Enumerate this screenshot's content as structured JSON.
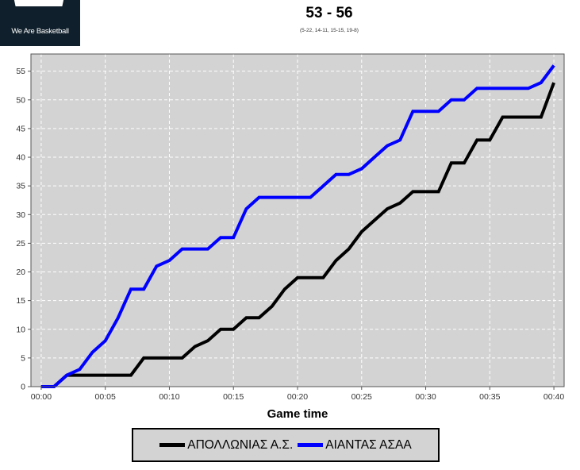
{
  "logo": {
    "tagline": "We Are Basketball"
  },
  "header": {
    "score": "53 - 56",
    "partials": "(5-22, 14-11, 15-15, 19-8)"
  },
  "colors": {
    "team1": "#000000",
    "team2": "#0000ff",
    "plot_background": "#d3d3d3",
    "grid": "#ffffff"
  },
  "chart_data": {
    "type": "line",
    "title": "53 - 56",
    "subtitle": "(5-22, 14-11, 15-15, 19-8)",
    "xlabel": "Game time",
    "ylabel": "",
    "x_unit": "minutes",
    "xlim": [
      -0.8,
      40.8
    ],
    "ylim": [
      0,
      58
    ],
    "x_ticks": [
      0,
      5,
      10,
      15,
      20,
      25,
      30,
      35,
      40
    ],
    "x_tick_labels": [
      "00:00",
      "00:05",
      "00:10",
      "00:15",
      "00:20",
      "00:25",
      "00:30",
      "00:35",
      "00:40"
    ],
    "y_ticks": [
      0,
      5,
      10,
      15,
      20,
      25,
      30,
      35,
      40,
      45,
      50,
      55
    ],
    "grid": true,
    "legend_position": "bottom",
    "series": [
      {
        "name": "ΑΠΟΛΛΩΝΙΑΣ Α.Σ.",
        "color": "#000000",
        "points": [
          [
            0,
            0
          ],
          [
            1,
            0
          ],
          [
            2,
            2
          ],
          [
            3,
            2
          ],
          [
            4,
            2
          ],
          [
            5,
            2
          ],
          [
            6,
            2
          ],
          [
            7,
            2
          ],
          [
            8,
            5
          ],
          [
            9,
            5
          ],
          [
            10,
            5
          ],
          [
            11,
            5
          ],
          [
            12,
            7
          ],
          [
            13,
            8
          ],
          [
            14,
            10
          ],
          [
            15,
            10
          ],
          [
            16,
            12
          ],
          [
            17,
            12
          ],
          [
            18,
            14
          ],
          [
            19,
            17
          ],
          [
            20,
            19
          ],
          [
            21,
            19
          ],
          [
            22,
            19
          ],
          [
            23,
            22
          ],
          [
            24,
            24
          ],
          [
            25,
            27
          ],
          [
            26,
            29
          ],
          [
            27,
            31
          ],
          [
            28,
            32
          ],
          [
            29,
            34
          ],
          [
            30,
            34
          ],
          [
            31,
            34
          ],
          [
            32,
            39
          ],
          [
            33,
            39
          ],
          [
            34,
            43
          ],
          [
            35,
            43
          ],
          [
            36,
            47
          ],
          [
            37,
            47
          ],
          [
            38,
            47
          ],
          [
            39,
            47
          ],
          [
            40,
            53
          ]
        ]
      },
      {
        "name": "ΑΙΑΝΤΑΣ ΑΣΑΑ",
        "color": "#0000ff",
        "points": [
          [
            0,
            0
          ],
          [
            1,
            0
          ],
          [
            2,
            2
          ],
          [
            3,
            3
          ],
          [
            4,
            6
          ],
          [
            5,
            8
          ],
          [
            6,
            12
          ],
          [
            7,
            17
          ],
          [
            8,
            17
          ],
          [
            9,
            21
          ],
          [
            10,
            22
          ],
          [
            11,
            24
          ],
          [
            12,
            24
          ],
          [
            13,
            24
          ],
          [
            14,
            26
          ],
          [
            15,
            26
          ],
          [
            16,
            31
          ],
          [
            17,
            33
          ],
          [
            18,
            33
          ],
          [
            19,
            33
          ],
          [
            20,
            33
          ],
          [
            21,
            33
          ],
          [
            22,
            35
          ],
          [
            23,
            37
          ],
          [
            24,
            37
          ],
          [
            25,
            38
          ],
          [
            26,
            40
          ],
          [
            27,
            42
          ],
          [
            28,
            43
          ],
          [
            29,
            48
          ],
          [
            30,
            48
          ],
          [
            31,
            48
          ],
          [
            32,
            50
          ],
          [
            33,
            50
          ],
          [
            34,
            52
          ],
          [
            35,
            52
          ],
          [
            36,
            52
          ],
          [
            37,
            52
          ],
          [
            38,
            52
          ],
          [
            39,
            53
          ],
          [
            40,
            56
          ]
        ]
      }
    ]
  }
}
